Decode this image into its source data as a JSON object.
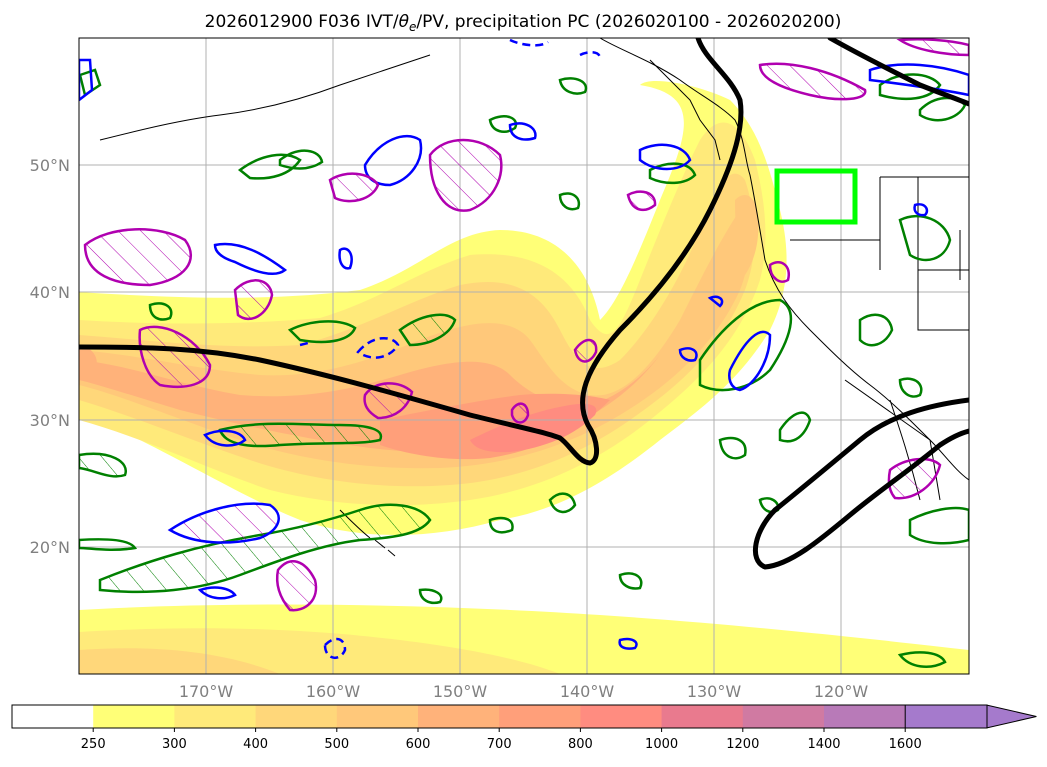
{
  "title": {
    "prefix": "2026012900 F036 IVT/",
    "theta": "θ",
    "theta_sub": "e",
    "suffix": "/PV, precipitation PC (2026020100 - 2026020200)"
  },
  "map": {
    "lon_range": [
      -180,
      -110
    ],
    "lat_range": [
      10,
      60
    ],
    "lat_ticks": [
      {
        "value": 20,
        "label": "20°N"
      },
      {
        "value": 30,
        "label": "30°N"
      },
      {
        "value": 40,
        "label": "40°N"
      },
      {
        "value": 50,
        "label": "50°N"
      }
    ],
    "lon_ticks": [
      {
        "value": -170,
        "label": "170°W"
      },
      {
        "value": -160,
        "label": "160°W"
      },
      {
        "value": -150,
        "label": "150°W"
      },
      {
        "value": -140,
        "label": "140°W"
      },
      {
        "value": -130,
        "label": "130°W"
      },
      {
        "value": -120,
        "label": "120°W"
      }
    ],
    "grid": true,
    "highlight_box": {
      "lon": [
        -125,
        -119
      ],
      "lat": [
        45.5,
        49.5
      ],
      "color": "#00ff00"
    }
  },
  "colorbar": {
    "levels": [
      "250",
      "300",
      "400",
      "500",
      "600",
      "700",
      "800",
      "1000",
      "1200",
      "1400",
      "1600"
    ],
    "colors": [
      "#ffffff",
      "#ffff77",
      "#ffea7a",
      "#ffd77a",
      "#ffc87a",
      "#ffb27a",
      "#ff9f7a",
      "#ff8c80",
      "#e97a8e",
      "#d07aa2",
      "#b87ab8",
      "#a57acc"
    ],
    "extend": "max"
  },
  "chart_data": {
    "type": "heatmap",
    "variable": "IVT",
    "contour_colors": {
      "theta_e_pv": "#000000",
      "precip_pc_positive": "#008000",
      "precip_pc_negative": "#0000ff",
      "pv": "#b000b0"
    }
  }
}
